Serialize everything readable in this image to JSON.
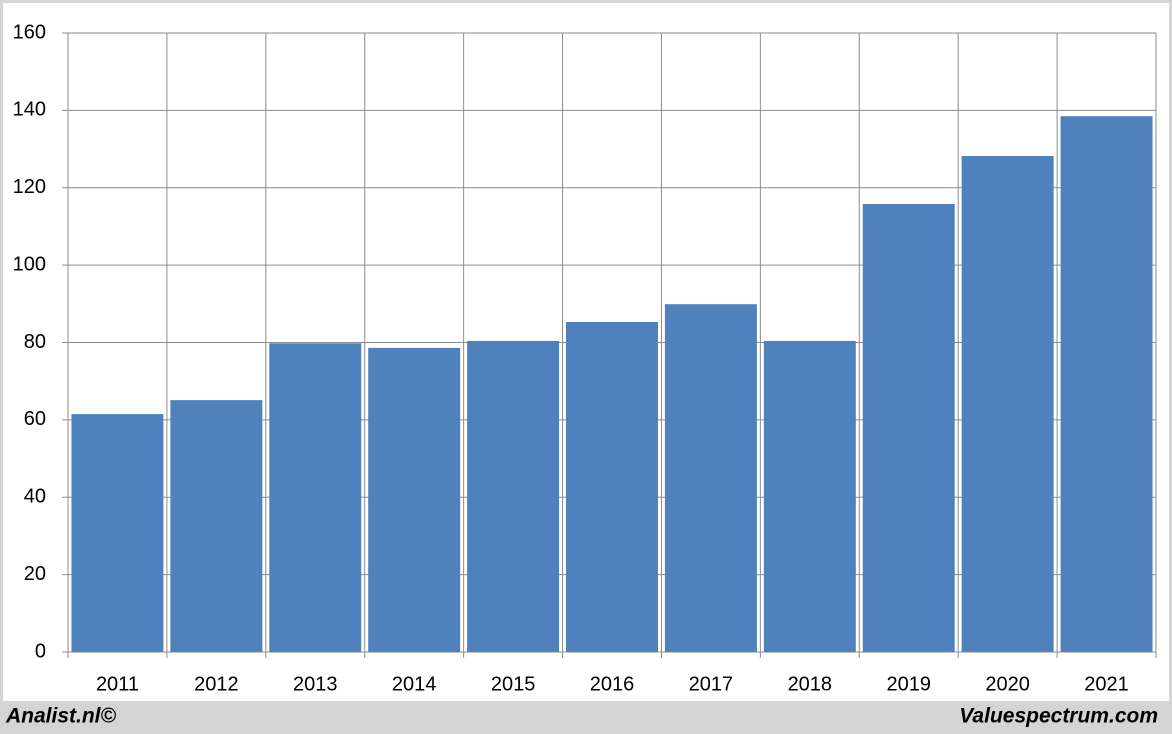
{
  "chart_data": {
    "type": "bar",
    "categories": [
      "2011",
      "2012",
      "2013",
      "2014",
      "2015",
      "2016",
      "2017",
      "2018",
      "2019",
      "2020",
      "2021"
    ],
    "values": [
      61.5,
      65.1,
      79.8,
      78.6,
      80.4,
      85.3,
      89.9,
      80.4,
      115.8,
      128.2,
      138.5
    ],
    "color": "#4f81bd",
    "ylim": [
      0,
      160
    ],
    "yticks": [
      0,
      20,
      40,
      60,
      80,
      100,
      120,
      140,
      160
    ],
    "grid": true,
    "credit_left": "Analist.nl©",
    "credit_right": "Valuespectrum.com"
  }
}
